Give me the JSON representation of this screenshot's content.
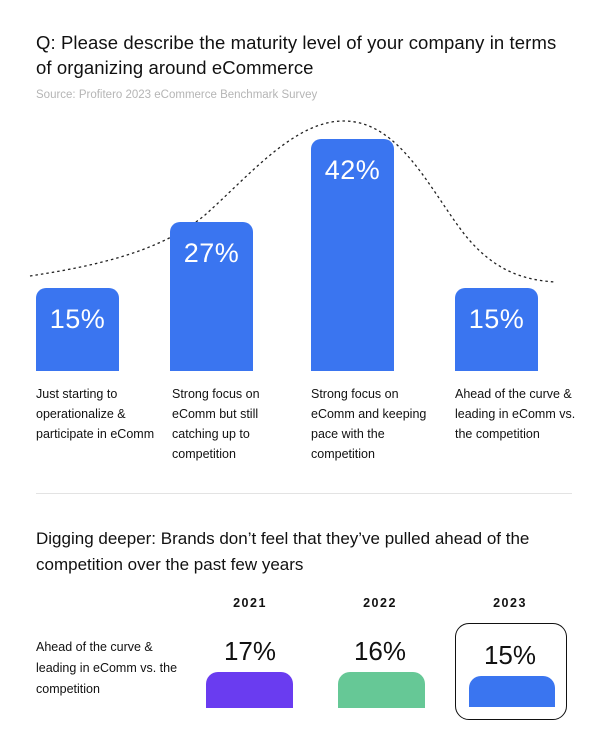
{
  "title": "Q: Please describe the maturity level of your company in terms of organizing around eCommerce",
  "source": "Source: Profitero 2023 eCommerce Benchmark Survey",
  "chart_data": [
    {
      "type": "bar",
      "categories": [
        "Just starting to operationalize & participate in eComm",
        "Strong focus on eComm but still catching up to competition",
        "Strong focus on eComm and keeping pace with the competition",
        "Ahead of the curve & leading in eComm vs. the competition"
      ],
      "values": [
        15,
        27,
        42,
        15
      ],
      "value_labels": [
        "15%",
        "27%",
        "42%",
        "15%"
      ],
      "bar_color": "#3a75f0",
      "overlay": "dotted bell curve",
      "grid": false
    },
    {
      "type": "bar",
      "title": "Digging deeper: Brands don’t feel that they’ve pulled ahead of the competition over the past few years",
      "row_label": "Ahead of the curve & leading in eComm vs. the competition",
      "categories": [
        "2021",
        "2022",
        "2023"
      ],
      "values": [
        17,
        16,
        15
      ],
      "value_labels": [
        "17%",
        "16%",
        "15%"
      ],
      "colors": [
        "#6a3cf0",
        "#66c896",
        "#3a75f0"
      ],
      "highlighted": "2023"
    }
  ]
}
